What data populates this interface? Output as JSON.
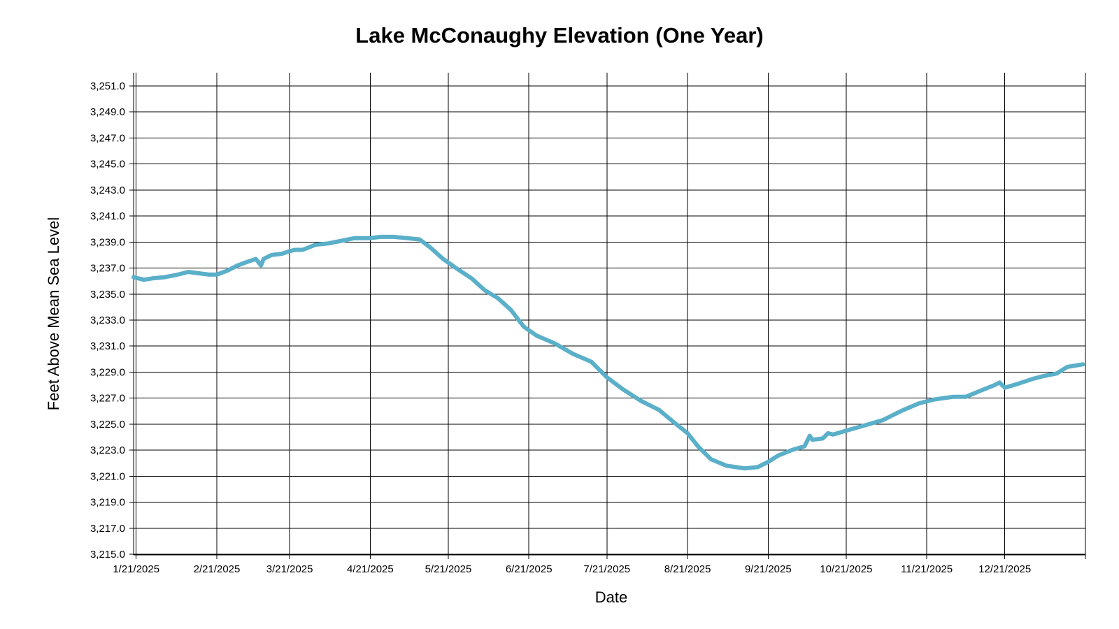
{
  "chart_data": {
    "type": "line",
    "title": "Lake McConaughy Elevation (One Year)",
    "xlabel": "Date",
    "ylabel": "Feet Above Mean Sea Level",
    "x_range": [
      "2025-01-20",
      "2026-01-21"
    ],
    "ylim": [
      3215.0,
      3252.0
    ],
    "y_ticks": [
      "3,215.0",
      "3,217.0",
      "3,219.0",
      "3,221.0",
      "3,223.0",
      "3,225.0",
      "3,227.0",
      "3,229.0",
      "3,231.0",
      "3,233.0",
      "3,235.0",
      "3,237.0",
      "3,239.0",
      "3,241.0",
      "3,243.0",
      "3,245.0",
      "3,247.0",
      "3,249.0",
      "3,251.0"
    ],
    "x_ticks": [
      "1/21/2025",
      "2/21/2025",
      "3/21/2025",
      "4/21/2025",
      "5/21/2025",
      "6/21/2025",
      "7/21/2025",
      "8/21/2025",
      "9/21/2025",
      "10/21/2025",
      "11/21/2025",
      "12/21/2025"
    ],
    "grid": true,
    "legend": "none",
    "series": [
      {
        "color": "#5aafc9",
        "x": [
          "2025-01-20",
          "2025-01-24",
          "2025-01-27",
          "2025-02-01",
          "2025-02-06",
          "2025-02-10",
          "2025-02-14",
          "2025-02-18",
          "2025-02-21",
          "2025-02-25",
          "2025-03-01",
          "2025-03-05",
          "2025-03-08",
          "2025-03-10",
          "2025-03-11",
          "2025-03-14",
          "2025-03-18",
          "2025-03-21",
          "2025-03-23",
          "2025-03-26",
          "2025-03-31",
          "2025-04-05",
          "2025-04-10",
          "2025-04-15",
          "2025-04-21",
          "2025-04-25",
          "2025-04-30",
          "2025-05-05",
          "2025-05-10",
          "2025-05-14",
          "2025-05-19",
          "2025-05-24",
          "2025-05-30",
          "2025-06-04",
          "2025-06-09",
          "2025-06-14",
          "2025-06-19",
          "2025-06-24",
          "2025-07-01",
          "2025-07-08",
          "2025-07-15",
          "2025-07-21",
          "2025-07-27",
          "2025-08-03",
          "2025-08-10",
          "2025-08-16",
          "2025-08-21",
          "2025-08-25",
          "2025-08-30",
          "2025-09-05",
          "2025-09-12",
          "2025-09-17",
          "2025-09-21",
          "2025-09-25",
          "2025-09-30",
          "2025-10-05",
          "2025-10-07",
          "2025-10-08",
          "2025-10-12",
          "2025-10-14",
          "2025-10-16",
          "2025-10-21",
          "2025-10-28",
          "2025-11-04",
          "2025-11-11",
          "2025-11-18",
          "2025-11-24",
          "2025-12-01",
          "2025-12-06",
          "2025-12-12",
          "2025-12-17",
          "2025-12-19",
          "2025-12-21",
          "2025-12-26",
          "2026-01-01",
          "2026-01-05",
          "2026-01-10",
          "2026-01-14",
          "2026-01-20"
        ],
        "y": [
          3236.3,
          3236.1,
          3236.2,
          3236.3,
          3236.5,
          3236.7,
          3236.6,
          3236.5,
          3236.5,
          3236.8,
          3237.2,
          3237.5,
          3237.7,
          3237.2,
          3237.7,
          3238.0,
          3238.1,
          3238.3,
          3238.4,
          3238.4,
          3238.8,
          3238.9,
          3239.1,
          3239.3,
          3239.3,
          3239.4,
          3239.4,
          3239.3,
          3239.2,
          3238.6,
          3237.7,
          3237.0,
          3236.2,
          3235.3,
          3234.7,
          3233.8,
          3232.5,
          3231.8,
          3231.2,
          3230.4,
          3229.8,
          3228.6,
          3227.7,
          3226.8,
          3226.1,
          3225.1,
          3224.3,
          3223.3,
          3222.3,
          3221.8,
          3221.6,
          3221.7,
          3222.1,
          3222.6,
          3223.0,
          3223.3,
          3224.1,
          3223.8,
          3223.9,
          3224.3,
          3224.2,
          3224.5,
          3224.9,
          3225.3,
          3226.0,
          3226.6,
          3226.9,
          3227.1,
          3227.1,
          3227.6,
          3228.0,
          3228.2,
          3227.8,
          3228.1,
          3228.5,
          3228.7,
          3228.9,
          3229.4,
          3229.6
        ]
      }
    ]
  }
}
